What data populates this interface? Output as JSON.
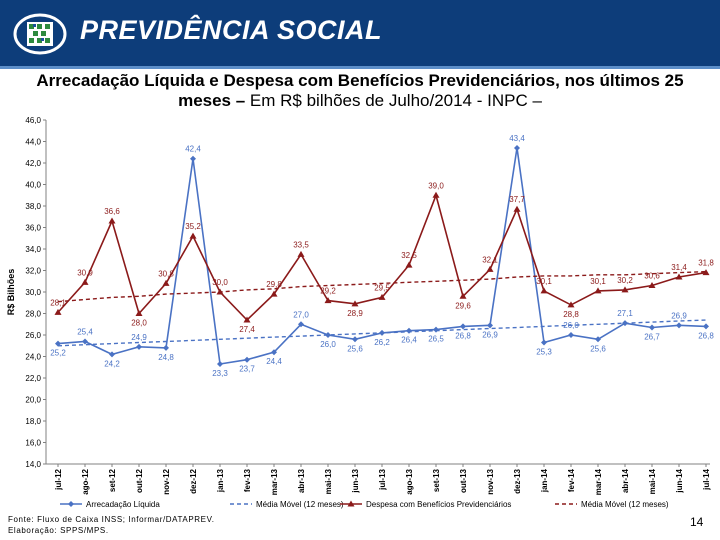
{
  "header": {
    "brand": "PREVIDÊNCIA SOCIAL",
    "colors": {
      "banner": "#0d3d7a",
      "stripe": "#5c8ec8"
    }
  },
  "title": {
    "bold": "Arrecadação Líquida e Despesa com Benefícios Previdenciários, nos últimos 25 meses –",
    "normal": " Em R$ bilhões de Julho/2014 - INPC –"
  },
  "chart_data": {
    "type": "line",
    "ylabel": "R$ Bilhões",
    "ylim": [
      14.0,
      46.0
    ],
    "ystep": 2.0,
    "categories": [
      "jul-12",
      "ago-12",
      "set-12",
      "out-12",
      "nov-12",
      "dez-12",
      "jan-13",
      "fev-13",
      "mar-13",
      "abr-13",
      "mai-13",
      "jun-13",
      "jul-13",
      "ago-13",
      "set-13",
      "out-13",
      "nov-13",
      "dez-13",
      "jan-14",
      "fev-14",
      "mar-14",
      "abr-14",
      "mai-14",
      "jun-14",
      "jul-14"
    ],
    "series": [
      {
        "name": "Arrecadação Líquida",
        "color": "#4a72c4",
        "marker": "diamond",
        "values": [
          25.2,
          25.4,
          24.2,
          24.9,
          24.8,
          42.4,
          23.3,
          23.7,
          24.4,
          27.0,
          26.0,
          25.6,
          26.2,
          26.4,
          26.5,
          26.8,
          26.9,
          43.4,
          25.3,
          26.0,
          25.6,
          27.1,
          26.7,
          26.9,
          26.8
        ],
        "labels": [
          "25,2",
          "25,4",
          "24,2",
          "24,9",
          "24,8",
          "42,4",
          "23,3",
          "23,7",
          "24,4",
          "27,0",
          "26,0",
          "25,6",
          "26,2",
          "26,4",
          "26,5",
          "26,8",
          "26,9",
          "43,4",
          "25,3",
          "26,0",
          "25,6",
          "27,1",
          "26,7",
          "26,9",
          "26,8"
        ]
      },
      {
        "name": "Despesa com Benefícios Previdenciários",
        "color": "#8b1a1a",
        "marker": "triangle",
        "values": [
          28.1,
          30.9,
          36.6,
          28.0,
          30.8,
          35.2,
          30.0,
          27.4,
          29.8,
          33.5,
          29.2,
          28.9,
          29.5,
          32.5,
          39.0,
          29.6,
          32.1,
          37.7,
          30.1,
          28.8,
          30.1,
          30.2,
          30.6,
          31.4,
          31.8
        ],
        "labels": [
          "28,1",
          "30,9",
          "36,6",
          "28,0",
          "30,8",
          "35,2",
          "30,0",
          "27,4",
          "29,8",
          "33,5",
          "29,2",
          "28,9",
          "29,5",
          "32,5",
          "39,0",
          "29,6",
          "32,1",
          "37,7",
          "30,1",
          "28,8",
          "30,1",
          "30,2",
          "30,6",
          "31,4",
          "31,8"
        ]
      },
      {
        "name": "Média Móvel (12 meses)",
        "color": "#4a72c4",
        "dashed": true,
        "values": [
          25.0,
          25.1,
          25.2,
          25.3,
          25.4,
          25.5,
          25.6,
          25.7,
          25.8,
          25.9,
          26.0,
          26.1,
          26.2,
          26.3,
          26.4,
          26.5,
          26.6,
          26.7,
          26.8,
          26.9,
          27.0,
          27.1,
          27.2,
          27.3,
          27.4
        ]
      },
      {
        "name": "Média Móvel (12 meses)",
        "color": "#8b1a1a",
        "dashed": true,
        "values": [
          29.1,
          29.3,
          29.5,
          29.6,
          29.8,
          29.9,
          30.0,
          30.2,
          30.3,
          30.5,
          30.6,
          30.7,
          30.8,
          30.9,
          31.0,
          31.1,
          31.2,
          31.4,
          31.5,
          31.5,
          31.6,
          31.6,
          31.7,
          31.8,
          31.9
        ]
      }
    ],
    "legend": [
      "Arrecadação Líquida",
      "Média Móvel (12 meses)",
      "Despesa com Benefícios Previdenciários",
      "Média Móvel (12 meses)"
    ]
  },
  "footer": {
    "source": "Fonte: Fluxo de Caixa INSS; Informar/DATAPREV.",
    "elaboration": "Elaboração: SPPS/MPS.",
    "page_number": "14"
  }
}
